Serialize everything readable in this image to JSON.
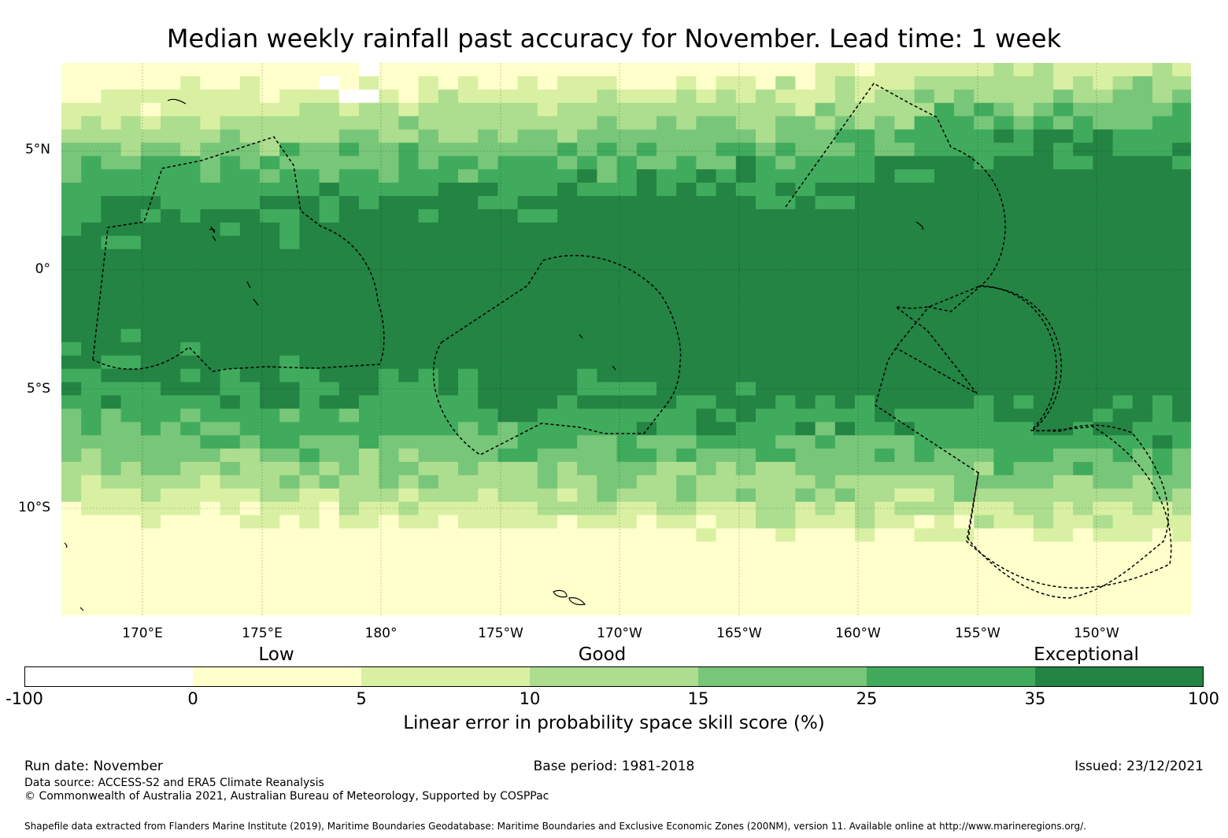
{
  "title": "Median weekly rainfall past accuracy for November. Lead time: 1 week",
  "map": {
    "lat_labels": [
      "5°N",
      "0°",
      "5°S",
      "10°S"
    ],
    "lon_labels": [
      "170°E",
      "175°E",
      "180°",
      "175°W",
      "170°W",
      "165°W",
      "160°W",
      "155°W",
      "150°W"
    ],
    "grid": {
      "lat_range": [
        -14.5,
        8.5
      ],
      "lon_range": [
        166.5,
        213.7
      ]
    }
  },
  "legend": {
    "categories": [
      "Low",
      "Good",
      "Exceptional"
    ],
    "ticks": [
      "-100",
      "0",
      "5",
      "10",
      "15",
      "25",
      "35",
      "100"
    ],
    "colors": [
      "#ffffff",
      "#ffffcc",
      "#d9f0a3",
      "#addd8e",
      "#78c679",
      "#41ab5d",
      "#238443"
    ],
    "label": "Linear error in probability space skill score (%)"
  },
  "footer": {
    "run_date": "Run date: November",
    "base_period": "Base period: 1981-2018",
    "issued": "Issued: 23/12/2021",
    "data_source": "Data source: ACCESS-S2 and ERA5 Climate Reanalysis",
    "copyright": "© Commonwealth of Australia 2021, Australian Bureau of Meteorology, Supported by COSPPac",
    "shapefile": "Shapefile data extracted from Flanders Marine Institute (2019), Maritime Boundaries Geodatabase: Maritime Boundaries and Exclusive Economic Zones (200NM), version 11. Available online at http://www.marineregions.org/."
  }
}
